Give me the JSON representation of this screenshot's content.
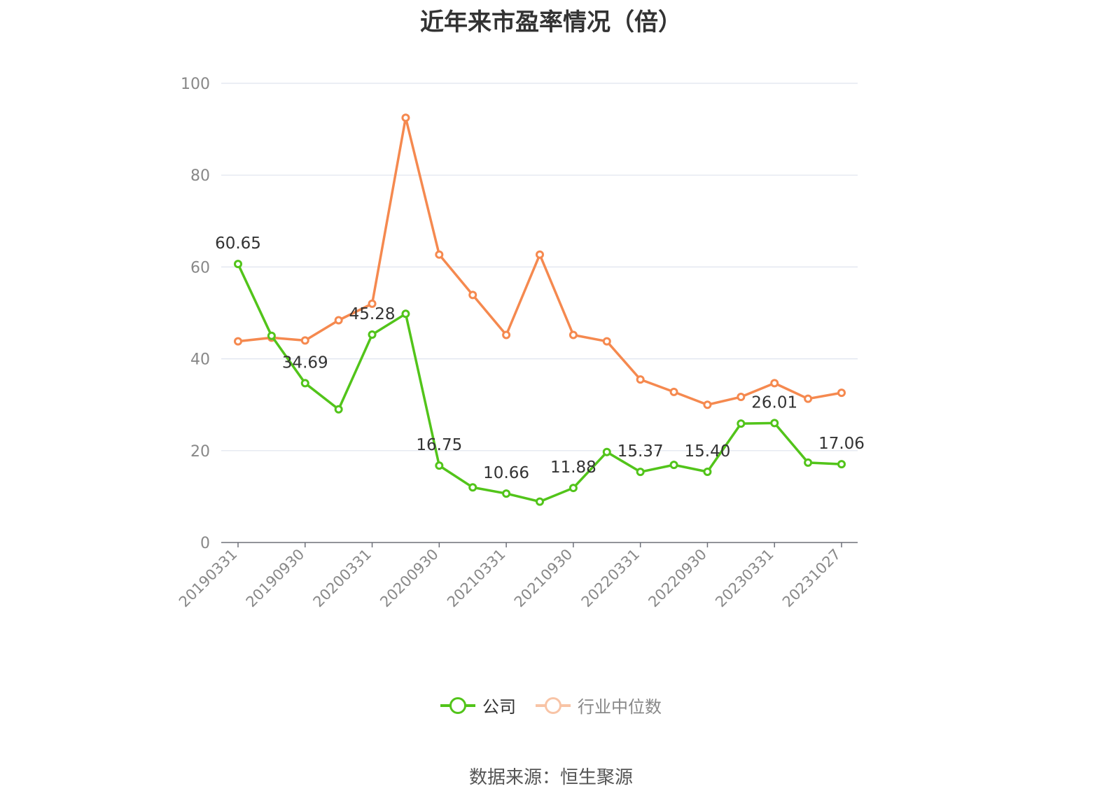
{
  "chart_data": {
    "type": "line",
    "title": "近年来市盈率情况（倍）",
    "xlabel": "",
    "ylabel": "",
    "ylim": [
      0,
      100
    ],
    "y_ticks": [
      0,
      20,
      40,
      60,
      80,
      100
    ],
    "grid": true,
    "legend_position": "bottom",
    "x_tick_labels": [
      "20190331",
      "20190930",
      "20200331",
      "20200930",
      "20210331",
      "20210930",
      "20220331",
      "20220930",
      "20230331",
      "20231027"
    ],
    "x_points": [
      "20190331",
      "20190630",
      "20190930",
      "20191231",
      "20200331",
      "20200630",
      "20200930",
      "20201231",
      "20210331",
      "20210630",
      "20210930",
      "20211231",
      "20220331",
      "20220630",
      "20220930",
      "20221231",
      "20230331",
      "20230630",
      "20231027"
    ],
    "series": [
      {
        "name": "公司",
        "color": "#52c41a",
        "values": [
          60.65,
          45.0,
          34.69,
          29.0,
          45.28,
          49.8,
          16.75,
          12.0,
          10.66,
          8.9,
          11.88,
          19.7,
          15.37,
          16.9,
          15.4,
          25.9,
          26.01,
          17.4,
          17.06
        ],
        "labels": {
          "0": "60.65",
          "2": "34.69",
          "4": "45.28",
          "6": "16.75",
          "8": "10.66",
          "10": "11.88",
          "12": "15.37",
          "14": "15.40",
          "16": "26.01",
          "18": "17.06"
        }
      },
      {
        "name": "行业中位数",
        "color": "#f5894f",
        "values": [
          43.8,
          44.6,
          44.0,
          48.4,
          52.0,
          92.5,
          62.7,
          53.9,
          45.2,
          62.7,
          45.2,
          43.8,
          35.5,
          32.8,
          30.0,
          31.7,
          34.7,
          31.3,
          32.6
        ]
      }
    ]
  },
  "legend": {
    "company_label": "公司",
    "industry_label": "行业中位数"
  },
  "source": "数据来源：恒生聚源"
}
